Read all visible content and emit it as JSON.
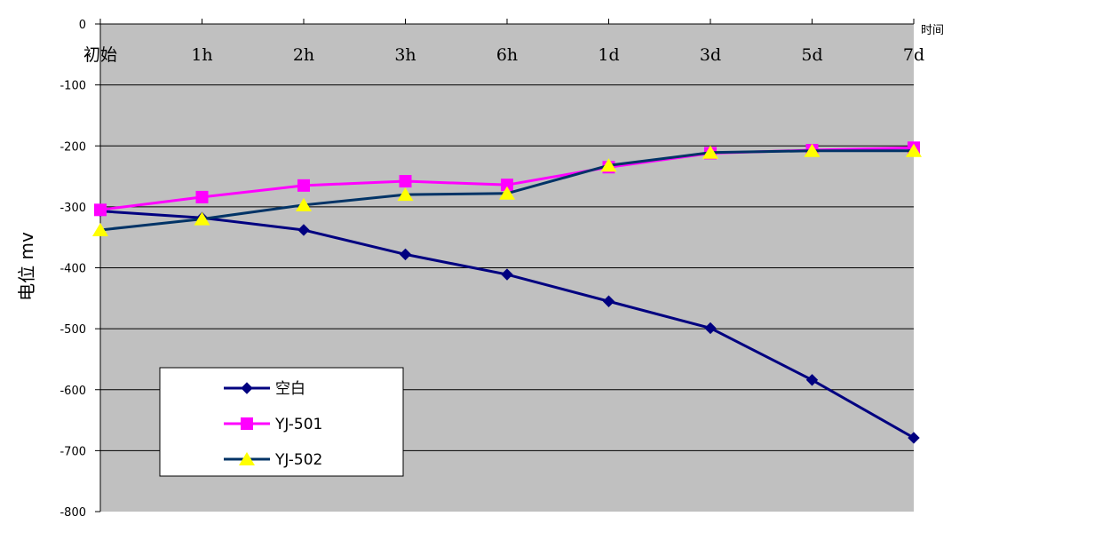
{
  "chart_data": {
    "type": "line",
    "title": "",
    "xlabel": "时间",
    "ylabel": "电位 mv",
    "categories": [
      "初始",
      "1h",
      "2h",
      "3h",
      "6h",
      "1d",
      "3d",
      "5d",
      "7d"
    ],
    "ylim": [
      -800,
      0
    ],
    "yticks": [
      0,
      -100,
      -200,
      -300,
      -400,
      -500,
      -600,
      -700,
      -800
    ],
    "grid": true,
    "legend_position": "bottom-left",
    "plot_background": "#c0c0c0",
    "series": [
      {
        "name": "空白",
        "color": "#000080",
        "marker": "diamond",
        "values": [
          -307,
          -318,
          -338,
          -378,
          -411,
          -455,
          -499,
          -584,
          -679
        ]
      },
      {
        "name": "YJ-501",
        "color": "#ff00ff",
        "marker": "square",
        "values": [
          -305,
          -284,
          -265,
          -258,
          -264,
          -235,
          -212,
          -207,
          -203
        ]
      },
      {
        "name": "YJ-502",
        "color": "#003366",
        "marker": "triangle",
        "marker_color": "#ffff00",
        "values": [
          -338,
          -320,
          -297,
          -280,
          -278,
          -232,
          -211,
          -208,
          -208
        ]
      }
    ]
  }
}
